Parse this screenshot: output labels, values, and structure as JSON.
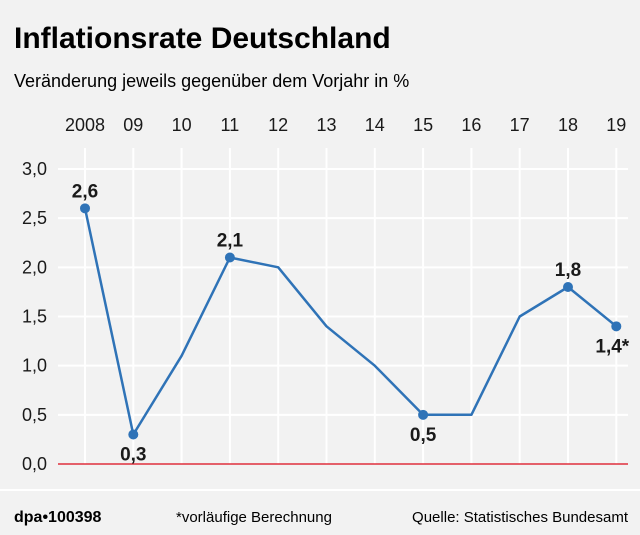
{
  "title": "Inflationsrate Deutschland",
  "subtitle": "Veränderung jeweils gegenüber dem Vorjahr in %",
  "colors": {
    "line": "#2f73b7",
    "zero_line": "#e0303c",
    "grid": "#ffffff",
    "background": "#f2f2f2",
    "plot_background": "#f2f2f2",
    "text": "#1a1a1a"
  },
  "chart_data": {
    "type": "line",
    "title": "Inflationsrate Deutschland",
    "subtitle": "Veränderung jeweils gegenüber dem Vorjahr in %",
    "categories": [
      "2008",
      "09",
      "10",
      "11",
      "12",
      "13",
      "14",
      "15",
      "16",
      "17",
      "18",
      "19"
    ],
    "series": [
      {
        "values": [
          2.6,
          0.3,
          1.1,
          2.1,
          2.0,
          1.4,
          1.0,
          0.5,
          0.5,
          1.5,
          1.8,
          1.4
        ]
      }
    ],
    "ylim": [
      0,
      3.0
    ],
    "yticks": [
      0,
      0.5,
      1.0,
      1.5,
      2.0,
      2.5,
      3.0
    ],
    "ytick_labels": [
      "0,0",
      "0,5",
      "1,0",
      "1,5",
      "2,0",
      "2,5",
      "3,0"
    ],
    "x_axis_position": "top",
    "grid": true,
    "data_labels": [
      {
        "index": 0,
        "text": "2,6",
        "position": "above"
      },
      {
        "index": 1,
        "text": "0,3",
        "position": "below"
      },
      {
        "index": 3,
        "text": "2,1",
        "position": "above"
      },
      {
        "index": 7,
        "text": "0,5",
        "position": "below"
      },
      {
        "index": 10,
        "text": "1,8",
        "position": "above"
      },
      {
        "index": 11,
        "text": "1,4*",
        "position": "below"
      }
    ],
    "markers_at": [
      0,
      1,
      3,
      7,
      10,
      11
    ]
  },
  "footer": {
    "source_id": "dpa•100398",
    "note": "*vorläufige Berechnung",
    "source": "Quelle: Statistisches Bundesamt"
  }
}
